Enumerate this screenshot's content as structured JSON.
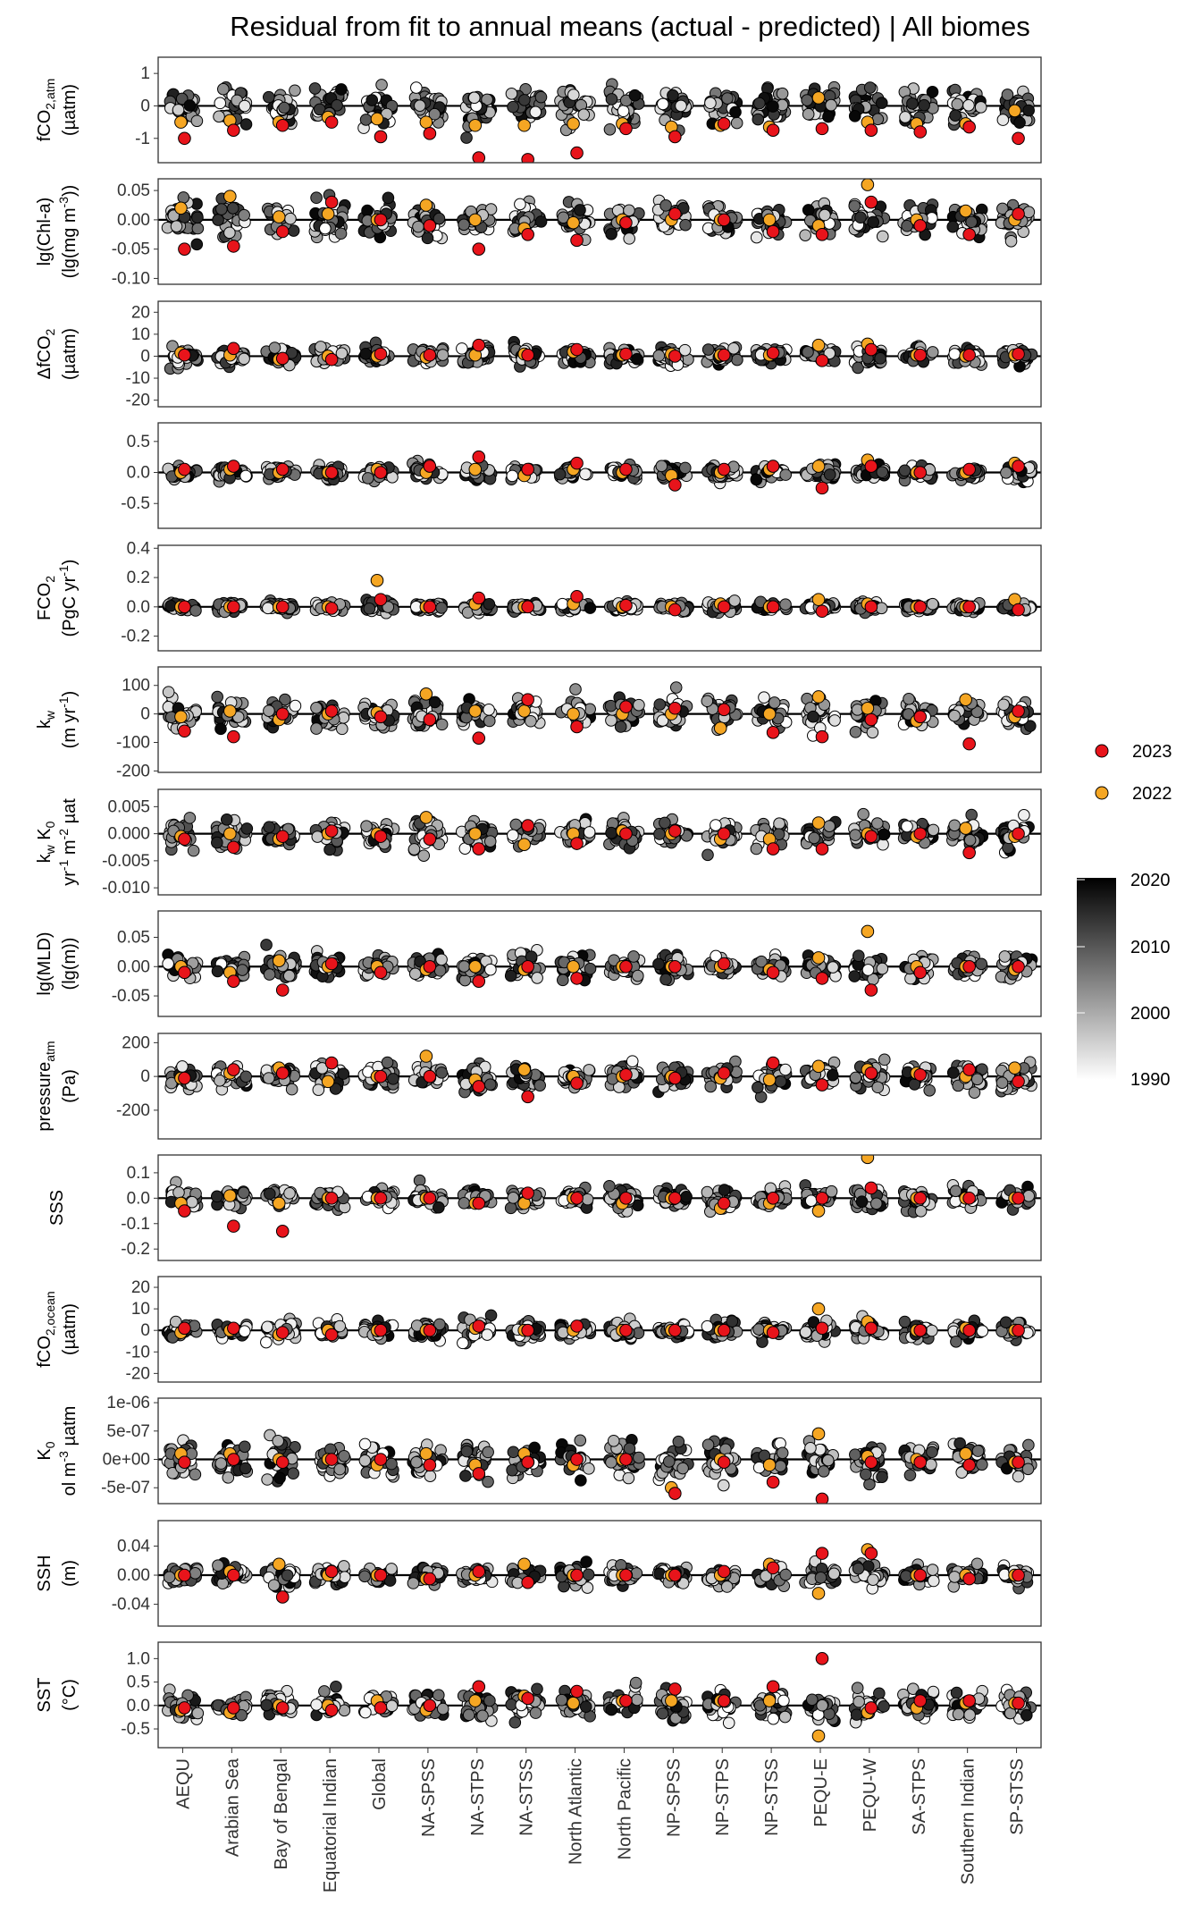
{
  "chart_data": {
    "type": "scatter",
    "title": "Residual from fit to annual means (actual - predicted) | All biomes",
    "categories": [
      "AEQU",
      "Arabian Sea",
      "Bay of Bengal",
      "Equatorial Indian",
      "Global",
      "NA-SPSS",
      "NA-STPS",
      "NA-STSS",
      "North Atlantic",
      "North Pacific",
      "NP-SPSS",
      "NP-STPS",
      "NP-STSS",
      "PEQU-E",
      "PEQU-W",
      "SA-STPS",
      "Southern Indian",
      "SP-STSS"
    ],
    "legend": {
      "points": [
        {
          "label": "2023",
          "color": "#e8141b"
        },
        {
          "label": "2022",
          "color": "#f5a623"
        }
      ],
      "colorbar": {
        "ticks": [
          "2020",
          "2010",
          "2000",
          "1990"
        ],
        "from_color": "#000000",
        "to_color": "#ffffff"
      },
      "placement": "right"
    },
    "facets": [
      {
        "id": "fco2atm",
        "ylabel": [
          "fCO2,atm",
          "(µatm)"
        ],
        "ticks": [
          "1",
          "0",
          "-1"
        ],
        "tick_values": [
          1,
          0,
          -1
        ],
        "ylim": [
          -1.75,
          1.5
        ],
        "spread": 0.35,
        "v2023": [
          -1.0,
          -0.75,
          -0.6,
          -0.5,
          -0.95,
          -0.85,
          -1.6,
          -1.65,
          -1.45,
          -0.7,
          -0.95,
          -0.55,
          -0.75,
          -0.7,
          -0.75,
          -0.8,
          -0.65,
          -1.0
        ],
        "v2022": [
          -0.5,
          -0.45,
          -0.5,
          -0.35,
          -0.4,
          -0.5,
          -0.6,
          -0.6,
          -0.55,
          -0.55,
          -0.65,
          -0.6,
          -0.65,
          0.25,
          -0.5,
          -0.55,
          -0.55,
          -0.15
        ]
      },
      {
        "id": "chla",
        "ylabel": [
          "lg(Chl-a)",
          "(lg(mg m-3))"
        ],
        "ticks": [
          "0.05",
          "0.00",
          "-0.05",
          "-0.10"
        ],
        "tick_values": [
          0.05,
          0,
          -0.05,
          -0.1
        ],
        "ylim": [
          -0.11,
          0.07
        ],
        "spread": 0.018,
        "v2023": [
          -0.05,
          -0.045,
          -0.02,
          0.03,
          0.0,
          -0.01,
          -0.05,
          -0.025,
          -0.035,
          -0.005,
          0.01,
          0.0,
          -0.02,
          -0.025,
          0.03,
          -0.01,
          -0.025,
          0.01
        ],
        "v2022": [
          0.02,
          0.04,
          0.005,
          0.01,
          0.0,
          0.025,
          0.0,
          -0.015,
          -0.005,
          0.0,
          0.0,
          0.0,
          0.0,
          -0.01,
          0.06,
          0.0,
          0.015,
          0.0
        ]
      },
      {
        "id": "dfco2",
        "ylabel": [
          "ΔfCO2",
          "(µatm)"
        ],
        "ticks": [
          "20",
          "10",
          "0",
          "-10",
          "-20"
        ],
        "tick_values": [
          20,
          10,
          0,
          -10,
          -20
        ],
        "ylim": [
          -23,
          25
        ],
        "spread": 2.5,
        "v2023": [
          0.5,
          3.5,
          -1.0,
          -1.5,
          1.0,
          0.5,
          5.0,
          0.5,
          3.0,
          1.0,
          0.0,
          0.5,
          1.5,
          -2.0,
          3.0,
          0.5,
          0.5,
          1.0
        ],
        "v2022": [
          1.5,
          0.5,
          -1.5,
          0.0,
          0.0,
          -0.5,
          0.5,
          1.0,
          2.0,
          0.5,
          1.0,
          0.5,
          0.5,
          5.0,
          5.5,
          0.5,
          0.0,
          0.5
        ]
      },
      {
        "id": "unlabeled",
        "ylabel": [],
        "ticks": [
          "0.5",
          "0.0",
          "-0.5"
        ],
        "tick_values": [
          0.5,
          0,
          -0.5
        ],
        "ylim": [
          -0.9,
          0.8
        ],
        "spread": 0.07,
        "v2023": [
          0.05,
          0.1,
          0.05,
          0.0,
          0.0,
          0.1,
          0.25,
          0.05,
          0.15,
          0.05,
          -0.2,
          0.05,
          0.1,
          -0.25,
          0.1,
          0.0,
          0.05,
          0.1
        ],
        "v2022": [
          0.0,
          0.05,
          0.0,
          0.0,
          0.05,
          0.0,
          0.05,
          -0.05,
          0.05,
          0.0,
          -0.05,
          0.0,
          0.05,
          0.1,
          0.2,
          0.0,
          0.0,
          0.15
        ]
      },
      {
        "id": "fco2",
        "ylabel": [
          "FCO2",
          "(PgC yr-1)"
        ],
        "ticks": [
          "0.4",
          "0.2",
          "0.0",
          "-0.2"
        ],
        "tick_values": [
          0.4,
          0.2,
          0,
          -0.2
        ],
        "ylim": [
          -0.3,
          0.42
        ],
        "spread": 0.02,
        "v2023": [
          0.0,
          0.0,
          0.0,
          -0.01,
          0.05,
          0.0,
          0.06,
          0.0,
          0.07,
          0.01,
          -0.02,
          0.0,
          0.0,
          -0.03,
          0.0,
          0.0,
          0.0,
          -0.02
        ],
        "v2022": [
          0.0,
          0.0,
          0.0,
          0.0,
          0.18,
          0.0,
          0.02,
          0.0,
          0.02,
          0.0,
          0.0,
          0.02,
          0.0,
          0.05,
          0.02,
          0.0,
          0.0,
          0.05
        ]
      },
      {
        "id": "kw",
        "ylabel": [
          "kw",
          "(m yr-1)"
        ],
        "ticks": [
          "100",
          "0",
          "-100",
          "-200"
        ],
        "tick_values": [
          100,
          0,
          -100,
          -200
        ],
        "ylim": [
          -205,
          165
        ],
        "spread": 30,
        "v2023": [
          -60,
          -80,
          0,
          10,
          -10,
          -20,
          -85,
          50,
          -45,
          25,
          20,
          15,
          -65,
          -80,
          -20,
          -10,
          -105,
          10
        ],
        "v2022": [
          -10,
          10,
          -20,
          0,
          5,
          70,
          10,
          10,
          0,
          0,
          0,
          -50,
          0,
          60,
          20,
          -25,
          50,
          -10
        ]
      },
      {
        "id": "kwk0",
        "ylabel": [
          "kw K0",
          "yr-1 m-2 µat"
        ],
        "ticks": [
          "0.005",
          "0.000",
          "-0.005",
          "-0.010"
        ],
        "tick_values": [
          0.005,
          0,
          -0.005,
          -0.01
        ],
        "ylim": [
          -0.0113,
          0.0082
        ],
        "spread": 0.0015,
        "v2023": [
          -0.001,
          -0.0025,
          -0.0005,
          0.0005,
          -0.0005,
          -0.001,
          -0.0028,
          0.0015,
          -0.0018,
          0.0,
          0.0005,
          0.0,
          -0.0028,
          -0.0028,
          -0.0005,
          0.0,
          -0.0035,
          0.0
        ],
        "v2022": [
          -0.0005,
          0.0,
          -0.001,
          0.0,
          0.0,
          0.003,
          0.0,
          -0.002,
          0.0,
          0.0005,
          0.0,
          -0.001,
          -0.001,
          0.002,
          0.0,
          -0.0005,
          0.001,
          -0.0005
        ]
      },
      {
        "id": "mld",
        "ylabel": [
          "lg(MLD)",
          "(lg(m))"
        ],
        "ticks": [
          "0.05",
          "0.00",
          "-0.05"
        ],
        "tick_values": [
          0.05,
          0,
          -0.05
        ],
        "ylim": [
          -0.085,
          0.095
        ],
        "spread": 0.012,
        "v2023": [
          -0.01,
          -0.025,
          -0.04,
          0.005,
          -0.01,
          0.0,
          -0.025,
          0.0,
          -0.02,
          0.0,
          0.0,
          0.005,
          -0.01,
          -0.02,
          -0.04,
          -0.01,
          0.0,
          0.0
        ],
        "v2022": [
          0.0,
          -0.01,
          0.01,
          0.0,
          0.0,
          -0.005,
          0.0,
          -0.005,
          0.0,
          0.0,
          0.0,
          0.0,
          -0.005,
          0.015,
          0.06,
          0.0,
          0.0,
          -0.005
        ]
      },
      {
        "id": "patm",
        "ylabel": [
          "pressureatm",
          "(Pa)"
        ],
        "ticks": [
          "200",
          "0",
          "-200"
        ],
        "tick_values": [
          200,
          0,
          -200
        ],
        "ylim": [
          -370,
          255
        ],
        "spread": 45,
        "v2023": [
          -10,
          40,
          20,
          80,
          0,
          0,
          -60,
          -120,
          -40,
          10,
          -10,
          20,
          80,
          -50,
          20,
          10,
          40,
          -30
        ],
        "v2022": [
          -10,
          20,
          50,
          -30,
          0,
          120,
          -20,
          40,
          0,
          0,
          0,
          -10,
          -20,
          60,
          40,
          20,
          0,
          50
        ]
      },
      {
        "id": "sss",
        "ylabel": [
          "SSS"
        ],
        "ticks": [
          "0.1",
          "0.0",
          "-0.1",
          "-0.2"
        ],
        "tick_values": [
          0.1,
          0,
          -0.1,
          -0.2
        ],
        "ylim": [
          -0.245,
          0.17
        ],
        "spread": 0.025,
        "v2023": [
          -0.05,
          -0.11,
          -0.13,
          0.0,
          0.0,
          0.0,
          -0.02,
          0.02,
          0.0,
          0.0,
          0.0,
          -0.02,
          0.0,
          0.0,
          0.04,
          0.0,
          0.0,
          0.0
        ],
        "v2022": [
          -0.02,
          0.01,
          -0.02,
          0.0,
          0.0,
          0.0,
          -0.02,
          -0.02,
          0.0,
          -0.02,
          0.0,
          -0.04,
          -0.02,
          -0.05,
          0.16,
          0.0,
          0.0,
          0.0
        ]
      },
      {
        "id": "fco2ocean",
        "ylabel": [
          "fCO2,ocean",
          "(µatm)"
        ],
        "ticks": [
          "20",
          "10",
          "0",
          "-10",
          "-20"
        ],
        "tick_values": [
          20,
          10,
          0,
          -10,
          -20
        ],
        "ylim": [
          -24,
          25
        ],
        "spread": 2.5,
        "v2023": [
          1.0,
          1.0,
          -1.0,
          -2.0,
          0.0,
          0.0,
          2.0,
          0.0,
          2.0,
          0.0,
          0.0,
          0.0,
          -1.0,
          1.0,
          1.0,
          0.0,
          0.0,
          0.0
        ],
        "v2022": [
          -1.0,
          0.0,
          -2.0,
          0.0,
          0.0,
          0.0,
          1.0,
          0.0,
          0.0,
          0.0,
          0.0,
          0.0,
          0.0,
          10.0,
          4.0,
          0.0,
          1.0,
          0.0
        ]
      },
      {
        "id": "k0",
        "ylabel": [
          "K0",
          "ol m-3 µatm"
        ],
        "ticks": [
          "1e-06",
          "5e-07",
          "0e+00",
          "-5e-07"
        ],
        "tick_values": [
          1e-06,
          5e-07,
          0,
          -5e-07
        ],
        "ylim": [
          -7.8e-07,
          1.08e-06
        ],
        "spread": 2e-07,
        "v2023": [
          -5e-08,
          0,
          -5e-08,
          0,
          0,
          -1e-07,
          -2.5e-07,
          -5e-08,
          0,
          0,
          -6e-07,
          -5e-08,
          -4e-07,
          -7e-07,
          -5e-08,
          -5e-08,
          -1e-07,
          -5e-08
        ],
        "v2022": [
          1e-07,
          1e-07,
          0,
          0,
          -1e-07,
          1e-07,
          -1e-07,
          1e-07,
          -1e-07,
          0,
          -5e-07,
          0,
          -1e-07,
          4.5e-07,
          5e-08,
          0,
          1e-07,
          -5e-08
        ]
      },
      {
        "id": "ssh",
        "ylabel": [
          "SSH",
          "(m)"
        ],
        "ticks": [
          "0.04",
          "0.00",
          "-0.04"
        ],
        "tick_values": [
          0.04,
          0,
          -0.04
        ],
        "ylim": [
          -0.07,
          0.075
        ],
        "spread": 0.008,
        "v2023": [
          0.0,
          0.0,
          -0.03,
          0.005,
          0.0,
          -0.005,
          0.005,
          -0.01,
          0.0,
          0.0,
          0.0,
          0.005,
          0.01,
          0.03,
          0.03,
          0.0,
          -0.005,
          0.0
        ],
        "v2022": [
          0.0,
          0.005,
          0.015,
          0.0,
          0.0,
          -0.005,
          0.0,
          0.015,
          0.0,
          0.0,
          0.0,
          0.0,
          0.015,
          -0.025,
          0.035,
          0.0,
          0.0,
          0.0
        ]
      },
      {
        "id": "sst",
        "ylabel": [
          "SST",
          "(°C)"
        ],
        "ticks": [
          "1.0",
          "0.5",
          "0.0",
          "-0.5"
        ],
        "tick_values": [
          1.0,
          0.5,
          0,
          -0.5
        ],
        "ylim": [
          -0.9,
          1.35
        ],
        "spread": 0.18,
        "v2023": [
          -0.05,
          -0.05,
          -0.05,
          -0.1,
          -0.05,
          0.0,
          0.4,
          0.15,
          0.3,
          0.1,
          0.35,
          0.1,
          0.4,
          1.0,
          -0.05,
          0.1,
          0.1,
          0.05
        ],
        "v2022": [
          -0.1,
          -0.15,
          0.0,
          0.0,
          0.1,
          -0.1,
          0.1,
          0.2,
          0.05,
          0.1,
          0.1,
          0.1,
          0.1,
          -0.65,
          -0.15,
          -0.05,
          0.05,
          0.05
        ]
      }
    ]
  }
}
